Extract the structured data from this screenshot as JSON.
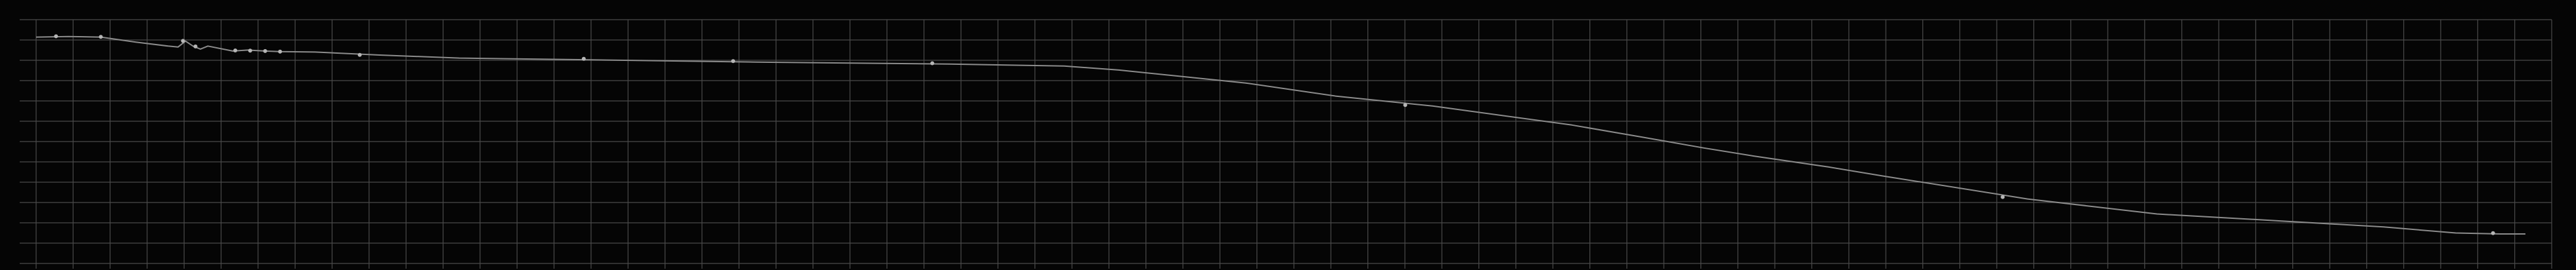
{
  "chart_data": {
    "type": "line",
    "title": "",
    "xlabel": "",
    "ylabel": "",
    "xlim": [
      0,
      100
    ],
    "ylim": [
      0,
      100
    ],
    "grid": true,
    "x_divisions": 68,
    "y_divisions": 12,
    "colors": {
      "background": "#050505",
      "grid": "#4a4a4a",
      "line": "#8c8c8c",
      "marker": "#b5b5b5"
    },
    "series": [
      {
        "x": [
          0,
          1.3,
          2.6,
          4.0,
          5.3,
          5.7,
          6.0,
          6.3,
          6.6,
          6.9,
          7.9,
          8.5,
          9.2,
          9.8,
          11.2,
          13.8,
          17.0,
          22.9,
          28.9,
          36.7,
          41.3,
          43.5,
          48.6,
          52.2,
          56.1,
          61.7,
          64.5,
          67.0,
          69.0,
          72.0,
          74.2,
          80.0,
          85.2,
          90.2,
          94.3,
          97.2,
          99.0,
          100
        ],
        "y": [
          98.5,
          98.8,
          98.5,
          96.0,
          94.0,
          93.5,
          96.5,
          94.0,
          92.5,
          94.0,
          91.5,
          92.0,
          91.5,
          91.2,
          91.0,
          89.5,
          88.0,
          87.0,
          86.0,
          85.0,
          84.0,
          82.0,
          75.5,
          69.0,
          64.0,
          54.5,
          48.5,
          43.0,
          39.0,
          33.5,
          29.0,
          17.5,
          10.0,
          6.5,
          3.5,
          0.5,
          0.0,
          0.0
        ]
      }
    ],
    "markers": [
      {
        "x": 0.8,
        "y": 98.9
      },
      {
        "x": 2.6,
        "y": 98.6
      },
      {
        "x": 5.9,
        "y": 96.6
      },
      {
        "x": 6.4,
        "y": 93.8
      },
      {
        "x": 8.0,
        "y": 91.8
      },
      {
        "x": 8.6,
        "y": 91.7
      },
      {
        "x": 9.2,
        "y": 91.5
      },
      {
        "x": 9.8,
        "y": 91.2
      },
      {
        "x": 13.0,
        "y": 89.6
      },
      {
        "x": 22.0,
        "y": 87.6
      },
      {
        "x": 28.0,
        "y": 86.5
      },
      {
        "x": 36.0,
        "y": 85.4
      },
      {
        "x": 55.0,
        "y": 64.5
      },
      {
        "x": 79.0,
        "y": 18.5
      },
      {
        "x": 98.7,
        "y": 0.4
      }
    ]
  }
}
